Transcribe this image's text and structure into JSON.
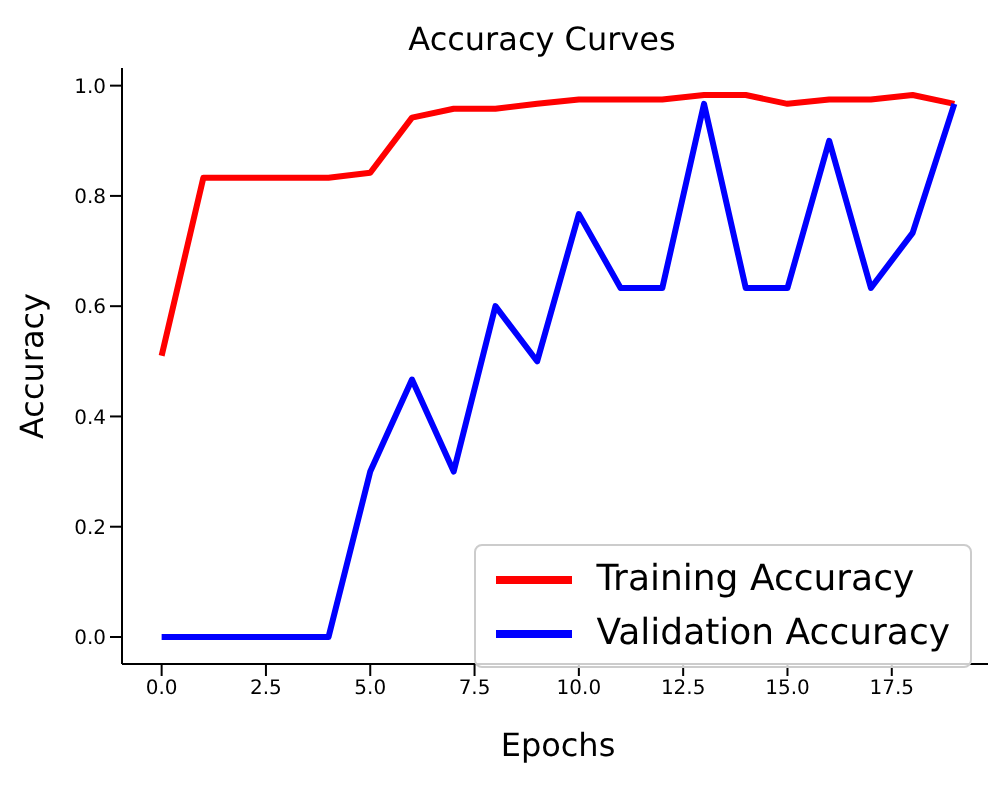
{
  "chart_data": {
    "type": "line",
    "title": "Accuracy Curves",
    "xlabel": "Epochs",
    "ylabel": "Accuracy",
    "x": [
      0,
      1,
      2,
      3,
      4,
      5,
      6,
      7,
      8,
      9,
      10,
      11,
      12,
      13,
      14,
      15,
      16,
      17,
      18,
      19
    ],
    "series": [
      {
        "name": "Training Accuracy",
        "color": "#ff0000",
        "values": [
          0.51,
          0.833,
          0.833,
          0.833,
          0.833,
          0.842,
          0.942,
          0.958,
          0.958,
          0.967,
          0.975,
          0.975,
          0.975,
          0.983,
          0.983,
          0.967,
          0.975,
          0.975,
          0.983,
          0.967
        ]
      },
      {
        "name": "Validation Accuracy",
        "color": "#0000ff",
        "values": [
          0,
          0,
          0,
          0,
          0,
          0.3,
          0.467,
          0.3,
          0.6,
          0.5,
          0.767,
          0.633,
          0.633,
          0.967,
          0.633,
          0.633,
          0.9,
          0.633,
          0.733,
          0.967
        ]
      }
    ],
    "xlim": [
      -0.95,
      19.95
    ],
    "xticks": [
      {
        "value": 0,
        "label": "0.0"
      },
      {
        "value": 2.5,
        "label": "2.5"
      },
      {
        "value": 5,
        "label": "5.0"
      },
      {
        "value": 7.5,
        "label": "7.5"
      },
      {
        "value": 10,
        "label": "10.0"
      },
      {
        "value": 12.5,
        "label": "12.5"
      },
      {
        "value": 15,
        "label": "15.0"
      },
      {
        "value": 17.5,
        "label": "17.5"
      }
    ],
    "ylim": [
      -0.049,
      1.032
    ],
    "yticks": [
      {
        "value": 0,
        "label": "0.0"
      },
      {
        "value": 0.2,
        "label": "0.2"
      },
      {
        "value": 0.4,
        "label": "0.4"
      },
      {
        "value": 0.6,
        "label": "0.6"
      },
      {
        "value": 0.8,
        "label": "0.8"
      },
      {
        "value": 1,
        "label": "1.0"
      }
    ],
    "legend": "bottom right",
    "marker": "none",
    "line_style": "solid"
  }
}
